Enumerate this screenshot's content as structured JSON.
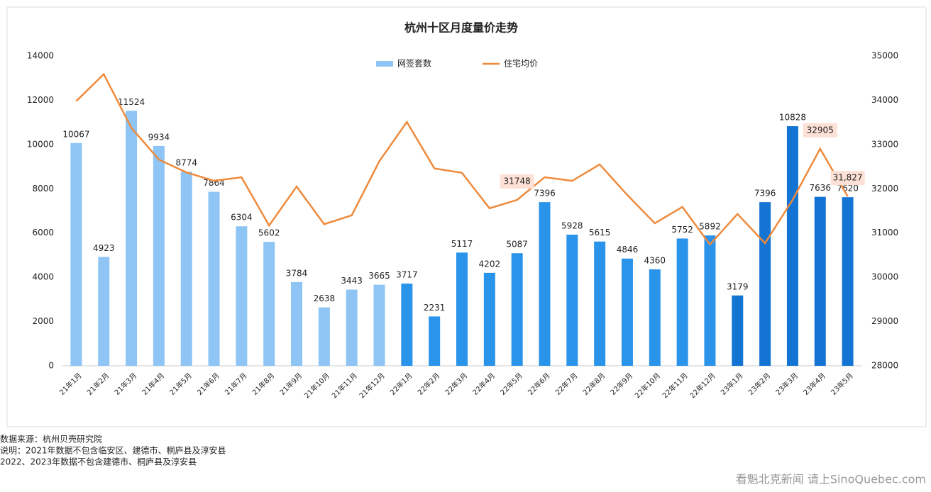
{
  "chart_data": {
    "type": "bar_line",
    "title": "杭州十区月度量价走势",
    "categories": [
      "21年1月",
      "21年2月",
      "21年3月",
      "21年4月",
      "21年5月",
      "21年6月",
      "21年7月",
      "21年8月",
      "21年9月",
      "21年10月",
      "21年11月",
      "21年12月",
      "22年1月",
      "22年2月",
      "22年3月",
      "22年4月",
      "22年5月",
      "22年6月",
      "22年7月",
      "22年8月",
      "22年9月",
      "22年10月",
      "22年11月",
      "22年12月",
      "23年1月",
      "23年2月",
      "23年3月",
      "23年4月",
      "23年5月"
    ],
    "series": [
      {
        "name": "网签套数",
        "type": "bar",
        "axis": "y",
        "colors": [
          "#8ec5f5",
          "#8ec5f5",
          "#8ec5f5",
          "#8ec5f5",
          "#8ec5f5",
          "#8ec5f5",
          "#8ec5f5",
          "#8ec5f5",
          "#8ec5f5",
          "#8ec5f5",
          "#8ec5f5",
          "#8ec5f5",
          "#2a94ea",
          "#2a94ea",
          "#2a94ea",
          "#2a94ea",
          "#2a94ea",
          "#2a94ea",
          "#2a94ea",
          "#2a94ea",
          "#2a94ea",
          "#2a94ea",
          "#2a94ea",
          "#2a94ea",
          "#1374d4",
          "#1374d4",
          "#1374d4",
          "#1374d4",
          "#1374d4"
        ],
        "color": "#8ec5f5",
        "values": [
          10067,
          4923,
          11524,
          9934,
          8774,
          7864,
          6304,
          5602,
          3784,
          2638,
          3443,
          3665,
          3717,
          2231,
          5117,
          4202,
          5087,
          7396,
          5928,
          5615,
          4846,
          4360,
          5752,
          5892,
          3179,
          7396,
          10828,
          7636,
          7620
        ]
      },
      {
        "name": "住宅均价",
        "type": "line",
        "axis": "y2",
        "color": "#ee8a3c",
        "values": [
          33980,
          34590,
          33380,
          32660,
          32370,
          32180,
          32260,
          31170,
          32050,
          31200,
          31400,
          32620,
          33510,
          32460,
          32360,
          31560,
          31748,
          32260,
          32180,
          32550,
          31860,
          31220,
          31590,
          30740,
          31430,
          30770,
          31750,
          32905,
          31827
        ],
        "value_labels": [
          null,
          null,
          null,
          null,
          null,
          null,
          null,
          null,
          null,
          null,
          null,
          null,
          null,
          null,
          null,
          null,
          "31748",
          null,
          null,
          null,
          null,
          null,
          null,
          null,
          null,
          null,
          null,
          "32905",
          "31,827"
        ]
      }
    ],
    "ylim": [
      0,
      14000
    ],
    "yticks": [
      0,
      2000,
      4000,
      6000,
      8000,
      10000,
      12000,
      14000
    ],
    "y2lim": [
      28000,
      35000
    ],
    "y2ticks": [
      28000,
      29000,
      30000,
      31000,
      32000,
      33000,
      34000,
      35000
    ],
    "grid": false,
    "legend": "top"
  },
  "footnotes": [
    "数据来源：杭州贝壳研究院",
    "说明：2021年数据不包含临安区、建德市、桐庐县及淳安县",
    "2022、2023年数据不包含建德市、桐庐县及淳安县"
  ],
  "watermark": "看魁北克新闻 请上SinoQuebec.com"
}
